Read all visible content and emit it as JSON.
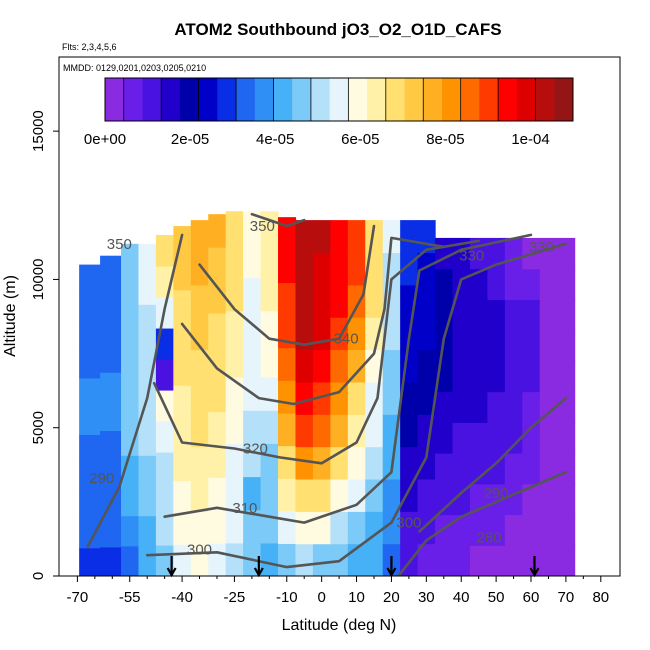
{
  "chart_data": {
    "type": "heatmap",
    "title": "ATOM2 Southbound jO3_O2_O1D_CAFS",
    "subtitle_flights": "Flts: 2,3,4,5,6",
    "subtitle_dates": "MMDD: 0129,0201,0203,0205,0210",
    "xlabel": "Latitude (deg N)",
    "ylabel": "Altitude (m)",
    "xlim": [
      -70,
      80
    ],
    "ylim": [
      0,
      17500
    ],
    "x_ticks": [
      -70,
      -55,
      -40,
      -25,
      -10,
      0,
      10,
      20,
      30,
      40,
      50,
      60,
      70,
      80
    ],
    "y_ticks": [
      0,
      5000,
      10000,
      15000
    ],
    "colorbar": {
      "min": 0,
      "max": 0.00011,
      "tick_values": [
        0,
        2e-05,
        4e-05,
        6e-05,
        8e-05,
        0.0001
      ],
      "tick_labels": [
        "0e+00",
        "2e-05",
        "4e-05",
        "6e-05",
        "8e-05",
        "1e-04"
      ],
      "colors": [
        "#8a2be2",
        "#6a1fe8",
        "#4a12e0",
        "#2200cc",
        "#0000aa",
        "#0000c8",
        "#0a2ee6",
        "#1f66f0",
        "#2f8ff5",
        "#46b1f7",
        "#7ccaf7",
        "#b4e0f9",
        "#e6f4fc",
        "#fffbe0",
        "#fff2a8",
        "#ffe070",
        "#ffc944",
        "#ffaf22",
        "#ff9200",
        "#ff6a00",
        "#ff3a00",
        "#ff0000",
        "#de0000",
        "#b80d0d",
        "#951515"
      ]
    },
    "profiles": [
      {
        "lat": -67,
        "top": 10500,
        "values": [
          3e-05,
          3.2e-05,
          3.3e-05,
          3.4e-05,
          3.5e-05,
          3.6e-05,
          3.6e-05,
          3.5e-05,
          3.4e-05,
          3.3e-05,
          3.4e-05
        ]
      },
      {
        "lat": -60,
        "top": 10800,
        "values": [
          3e-05,
          3.2e-05,
          3.3e-05,
          3.4e-05,
          3.5e-05,
          3.7e-05,
          3.7e-05,
          3.5e-05,
          3.3e-05,
          3.2e-05,
          3.3e-05
        ]
      },
      {
        "lat": -55,
        "top": 11200,
        "values": [
          3.5e-05,
          3.8e-05,
          4e-05,
          4.2e-05,
          4.5e-05,
          4.6e-05,
          4.7e-05,
          4.8e-05,
          4.6e-05,
          4.5e-05,
          4.6e-05
        ]
      },
      {
        "lat": -50,
        "top": 11200,
        "values": [
          4e-05,
          4.3e-05,
          4.5e-05,
          4.8e-05,
          5e-05,
          5.1e-05,
          5.2e-05,
          5e-05,
          4.9e-05,
          5.3e-05,
          5.6e-05
        ]
      },
      {
        "lat": -45,
        "top": 11500,
        "values": [
          4.5e-05,
          5e-05,
          5.2e-05,
          5e-05,
          5.5e-05,
          5.8e-05,
          1e-05,
          3e-05,
          5.5e-05,
          6.5e-05,
          6.8e-05
        ]
      },
      {
        "lat": -40,
        "top": 11800,
        "values": [
          5.5e-05,
          5.8e-05,
          6e-05,
          6.2e-05,
          6.3e-05,
          6.5e-05,
          6.6e-05,
          6.8e-05,
          7e-05,
          7.2e-05,
          7.3e-05
        ]
      },
      {
        "lat": -35,
        "top": 12000,
        "values": [
          5.8e-05,
          6e-05,
          6.2e-05,
          6.4e-05,
          6.6e-05,
          6.8e-05,
          7e-05,
          7.2e-05,
          7.4e-05,
          7.6e-05,
          7.7e-05
        ]
      },
      {
        "lat": -30,
        "top": 12200,
        "values": [
          5.5e-05,
          5.8e-05,
          6e-05,
          6.2e-05,
          6.4e-05,
          6.6e-05,
          6.8e-05,
          7e-05,
          7.2e-05,
          7.4e-05,
          7.5e-05
        ]
      },
      {
        "lat": -25,
        "top": 12300,
        "values": [
          5e-05,
          5.3e-05,
          5.5e-05,
          5.7e-05,
          5.9e-05,
          6e-05,
          6.2e-05,
          6.4e-05,
          6.6e-05,
          6.8e-05,
          7e-05
        ]
      },
      {
        "lat": -20,
        "top": 12300,
        "values": [
          4.5e-05,
          4.8e-05,
          4.2e-05,
          5e-05,
          5.2e-05,
          5.4e-05,
          5.5e-05,
          5.6e-05,
          5.7e-05,
          5.8e-05,
          6e-05
        ]
      },
      {
        "lat": -15,
        "top": 12300,
        "values": [
          4.3e-05,
          4.5e-05,
          4.6e-05,
          4.8e-05,
          5e-05,
          5.5e-05,
          5.8e-05,
          6e-05,
          6.2e-05,
          6.3e-05,
          6.5e-05
        ]
      },
      {
        "lat": -10,
        "top": 12100,
        "values": [
          4.8e-05,
          5.5e-05,
          6.2e-05,
          7e-05,
          7.8e-05,
          8.2e-05,
          8.6e-05,
          9e-05,
          9.2e-05,
          9.5e-05,
          9.6e-05
        ]
      },
      {
        "lat": -5,
        "top": 12000,
        "values": [
          5e-05,
          6e-05,
          7e-05,
          8e-05,
          9e-05,
          9.6e-05,
          0.0001,
          0.000102,
          0.000103,
          0.000104,
          0.000105
        ]
      },
      {
        "lat": 0,
        "top": 12000,
        "values": [
          4.8e-05,
          5.8e-05,
          6.8e-05,
          7.8e-05,
          8.6e-05,
          9.2e-05,
          9.6e-05,
          9.8e-05,
          0.0001,
          0.000101,
          0.000102
        ]
      },
      {
        "lat": 5,
        "top": 12000,
        "values": [
          4.5e-05,
          5.2e-05,
          6e-05,
          6.8e-05,
          7.5e-05,
          8e-05,
          8.6e-05,
          9e-05,
          9.3e-05,
          9.5e-05,
          9.6e-05
        ]
      },
      {
        "lat": 10,
        "top": 12000,
        "values": [
          4.2e-05,
          4.8e-05,
          5.4e-05,
          6e-05,
          6.5e-05,
          7e-05,
          7.5e-05,
          8e-05,
          8.5e-05,
          8.8e-05,
          9e-05
        ]
      },
      {
        "lat": 15,
        "top": 12000,
        "values": [
          4e-05,
          4.3e-05,
          4.6e-05,
          5e-05,
          5.3e-05,
          5.6e-05,
          6e-05,
          6.3e-05,
          6.6e-05,
          6.8e-05,
          7e-05
        ]
      },
      {
        "lat": 20,
        "top": 12000,
        "values": [
          3.5e-05,
          3.7e-05,
          3.9e-05,
          4.1e-05,
          4.3e-05,
          4.5e-05,
          4.7e-05,
          4.9e-05,
          5e-05,
          5.2e-05,
          5.4e-05
        ]
      },
      {
        "lat": 25,
        "top": 12000,
        "values": [
          1e-05,
          1.2e-05,
          1.4e-05,
          1.6e-05,
          1.8e-05,
          2e-05,
          2.2e-05,
          2.4e-05,
          2.6e-05,
          2.8e-05,
          3e-05
        ]
      },
      {
        "lat": 30,
        "top": 12000,
        "values": [
          8e-06,
          1e-05,
          1.2e-05,
          1.4e-05,
          1.6e-05,
          1.8e-05,
          2e-05,
          2.2e-05,
          2.4e-05,
          2.6e-05,
          2.8e-05
        ]
      },
      {
        "lat": 35,
        "top": 11400,
        "values": [
          6e-06,
          8e-06,
          1e-05,
          1.2e-05,
          1.4e-05,
          1.6e-05,
          1.8e-05,
          2e-05,
          1.9e-05,
          1.8e-05,
          1.7e-05
        ]
      },
      {
        "lat": 40,
        "top": 11400,
        "values": [
          5e-06,
          7e-06,
          9e-06,
          1.1e-05,
          1.3e-05,
          1.5e-05,
          1.6e-05,
          1.7e-05,
          1.6e-05,
          1.5e-05,
          1.4e-05
        ]
      },
      {
        "lat": 45,
        "top": 11400,
        "values": [
          4e-06,
          6e-06,
          8e-06,
          1e-05,
          1.2e-05,
          1.4e-05,
          1.5e-05,
          1.6e-05,
          1.5e-05,
          1.4e-05,
          1.3e-05
        ]
      },
      {
        "lat": 50,
        "top": 11400,
        "values": [
          3e-06,
          5e-06,
          7e-06,
          9e-06,
          1.1e-05,
          1.3e-05,
          1.4e-05,
          1.5e-05,
          1.4e-05,
          1.2e-05,
          1e-05
        ]
      },
      {
        "lat": 55,
        "top": 11400,
        "values": [
          2e-06,
          4e-06,
          6e-06,
          8e-06,
          1e-05,
          1.1e-05,
          1.2e-05,
          1.2e-05,
          1e-05,
          8e-06,
          6e-06
        ]
      },
      {
        "lat": 60,
        "top": 11400,
        "values": [
          2e-06,
          3e-06,
          4e-06,
          5e-06,
          6e-06,
          8e-06,
          1e-05,
          1.1e-05,
          9e-06,
          6e-06,
          4e-06
        ]
      },
      {
        "lat": 65,
        "top": 11400,
        "values": [
          1e-06,
          2e-06,
          3e-06,
          3e-06,
          3e-06,
          3e-06,
          3e-06,
          3e-06,
          3e-06,
          3e-06,
          3e-06
        ]
      },
      {
        "lat": 70,
        "top": 11400,
        "values": [
          1e-06,
          1e-06,
          1e-06,
          2e-06,
          2e-06,
          2e-06,
          2e-06,
          2e-06,
          2e-06,
          2e-06,
          2e-06
        ]
      }
    ],
    "contours": [
      {
        "label": "280",
        "points": [
          [
            22,
            0
          ],
          [
            30,
            1200
          ],
          [
            40,
            2000
          ],
          [
            50,
            2500
          ],
          [
            60,
            3000
          ],
          [
            70,
            3500
          ]
        ]
      },
      {
        "label": "290",
        "points": [
          [
            -67,
            1000
          ],
          [
            -58,
            3000
          ],
          [
            -50,
            6000
          ],
          [
            -45,
            9000
          ],
          [
            -40,
            11500
          ]
        ]
      },
      {
        "label": "290",
        "points": [
          [
            28,
            1500
          ],
          [
            40,
            2800
          ],
          [
            50,
            3800
          ],
          [
            60,
            5000
          ],
          [
            70,
            6000
          ]
        ]
      },
      {
        "label": "300",
        "points": [
          [
            -50,
            700
          ],
          [
            -30,
            800
          ],
          [
            -10,
            300
          ],
          [
            5,
            500
          ],
          [
            20,
            1800
          ],
          [
            30,
            4000
          ],
          [
            35,
            8000
          ],
          [
            40,
            10000
          ],
          [
            50,
            10500
          ],
          [
            70,
            11200
          ]
        ]
      },
      {
        "label": "310",
        "points": [
          [
            -45,
            2000
          ],
          [
            -30,
            2300
          ],
          [
            -15,
            2000
          ],
          [
            -5,
            1800
          ],
          [
            10,
            2400
          ],
          [
            20,
            3500
          ],
          [
            25,
            8000
          ],
          [
            28,
            10300
          ],
          [
            40,
            11000
          ],
          [
            60,
            11500
          ]
        ]
      },
      {
        "label": "320",
        "points": [
          [
            -48,
            6500
          ],
          [
            -40,
            4500
          ],
          [
            -25,
            4300
          ],
          [
            -12,
            4000
          ],
          [
            0,
            3800
          ],
          [
            10,
            4500
          ],
          [
            16,
            6000
          ],
          [
            20,
            10000
          ],
          [
            30,
            11000
          ],
          [
            45,
            11300
          ]
        ]
      },
      {
        "label": "330",
        "points": [
          [
            -40,
            8500
          ],
          [
            -30,
            7000
          ],
          [
            -18,
            6000
          ],
          [
            -8,
            5800
          ],
          [
            5,
            6200
          ],
          [
            15,
            7500
          ],
          [
            18,
            9000
          ],
          [
            20,
            11400
          ],
          [
            35,
            11100
          ]
        ]
      },
      {
        "label": "340",
        "points": [
          [
            -35,
            10500
          ],
          [
            -25,
            9000
          ],
          [
            -15,
            8000
          ],
          [
            -5,
            7800
          ],
          [
            5,
            8000
          ],
          [
            12,
            9500
          ],
          [
            15,
            11800
          ]
        ]
      },
      {
        "label": "350",
        "points": [
          [
            -20,
            12200
          ],
          [
            -10,
            11800
          ],
          [
            -5,
            12000
          ]
        ]
      }
    ],
    "contour_labels": [
      {
        "text": "350",
        "lat": -17,
        "alt": 11800
      },
      {
        "text": "350",
        "lat": -58,
        "alt": 11200
      },
      {
        "text": "340",
        "lat": 7,
        "alt": 8000
      },
      {
        "text": "330",
        "lat": 43,
        "alt": 10800
      },
      {
        "text": "330",
        "lat": 63,
        "alt": 11100
      },
      {
        "text": "320",
        "lat": -19,
        "alt": 4300
      },
      {
        "text": "310",
        "lat": -22,
        "alt": 2300
      },
      {
        "text": "300",
        "lat": -35,
        "alt": 900
      },
      {
        "text": "300",
        "lat": 25,
        "alt": 1800
      },
      {
        "text": "290",
        "lat": -63,
        "alt": 3300
      },
      {
        "text": "290",
        "lat": 50,
        "alt": 2800
      },
      {
        "text": "280",
        "lat": 48,
        "alt": 1300
      }
    ],
    "arrow_markers": [
      -43,
      -18,
      20,
      61
    ]
  }
}
